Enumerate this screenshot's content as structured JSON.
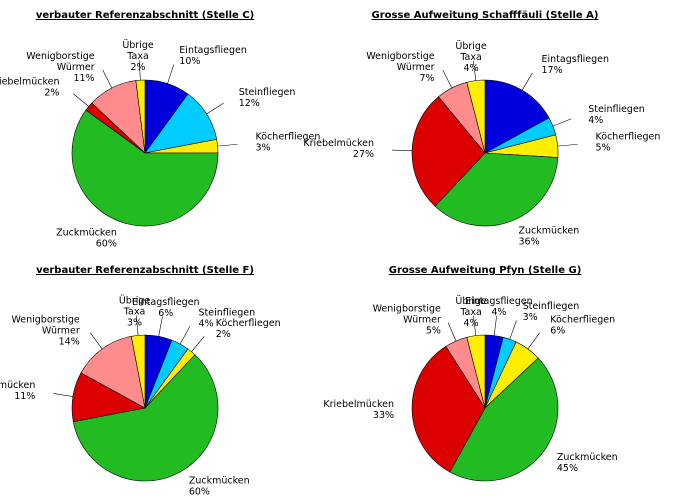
{
  "chart_data": [
    {
      "type": "pie",
      "title": "verbauter Referenzabschnitt (Stelle C)",
      "categories": [
        "Eintagsfliegen",
        "Steinfliegen",
        "Köcherfliegen",
        "Zuckmücken",
        "Kriebelmücken",
        "Wenigborstige Würmer",
        "Übrige Taxa"
      ],
      "values": [
        10,
        12,
        3,
        60,
        2,
        11,
        2
      ],
      "value_labels": [
        "10%",
        "12%",
        "3%",
        "60%",
        "2%",
        "11%",
        "2%"
      ],
      "colors": [
        "#0000dd",
        "#00ccff",
        "#ffee00",
        "#22bb22",
        "#dd0000",
        "#ff8c8c",
        "#ffee00"
      ]
    },
    {
      "type": "pie",
      "title": "Grosse Aufweitung Schafffäuli (Stelle A)",
      "categories": [
        "Eintagsfliegen",
        "Steinfliegen",
        "Köcherfliegen",
        "Zuckmücken",
        "Kriebelmücken",
        "Wenigborstige Würmer",
        "Übrige Taxa"
      ],
      "values": [
        17,
        4,
        5,
        36,
        27,
        7,
        4
      ],
      "value_labels": [
        "17%",
        "4%",
        "5%",
        "36%",
        "27%",
        "7%",
        "4%"
      ],
      "colors": [
        "#0000dd",
        "#00ccff",
        "#ffee00",
        "#22bb22",
        "#dd0000",
        "#ff8c8c",
        "#ffee00"
      ]
    },
    {
      "type": "pie",
      "title": "verbauter Referenzabschnitt (Stelle F)",
      "categories": [
        "Eintagsfliegen",
        "Steinfliegen",
        "Köcherfliegen",
        "Zuckmücken",
        "Kriebelmücken",
        "Wenigborstige Würmer",
        "Übrige Taxa"
      ],
      "values": [
        6,
        4,
        2,
        60,
        11,
        14,
        3
      ],
      "value_labels": [
        "6%",
        "4%",
        "2%",
        "60%",
        "11%",
        "14%",
        "3%"
      ],
      "colors": [
        "#0000dd",
        "#00ccff",
        "#ffee00",
        "#22bb22",
        "#dd0000",
        "#ff8c8c",
        "#ffee00"
      ]
    },
    {
      "type": "pie",
      "title": "Grosse Aufweitung Pfyn (Stelle G)",
      "categories": [
        "Eintagsfliegen",
        "Steinfliegen",
        "Köcherfliegen",
        "Zuckmücken",
        "Kriebelmücken",
        "Wenigborstige Würmer",
        "Übrige Taxa"
      ],
      "values": [
        4,
        3,
        6,
        45,
        33,
        5,
        4
      ],
      "value_labels": [
        "4%",
        "3%",
        "6%",
        "45%",
        "33%",
        "5%",
        "4%"
      ],
      "colors": [
        "#0000dd",
        "#00ccff",
        "#ffee00",
        "#22bb22",
        "#dd0000",
        "#ff8c8c",
        "#ffee00"
      ]
    }
  ]
}
